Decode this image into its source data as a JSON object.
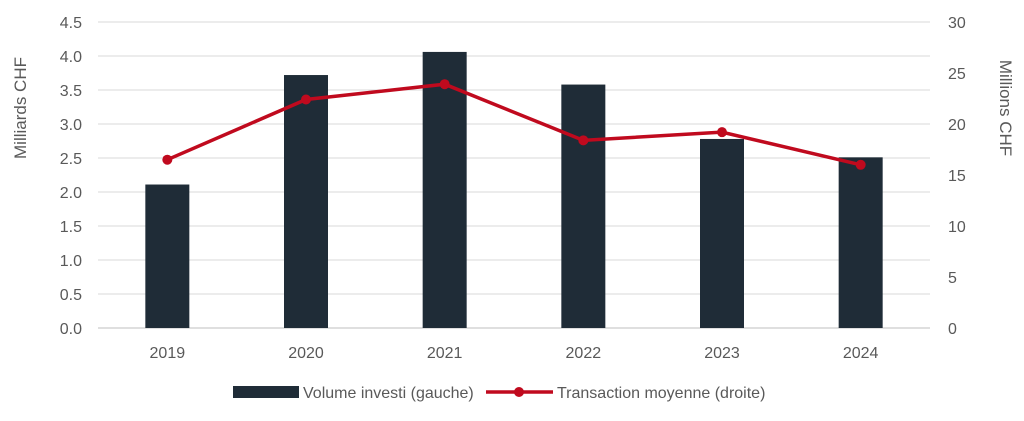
{
  "chart_data": {
    "type": "bar+line",
    "categories": [
      "2019",
      "2020",
      "2021",
      "2022",
      "2023",
      "2024"
    ],
    "series": [
      {
        "name": "Volume investi (gauche)",
        "type": "bar",
        "axis": "left",
        "color": "#1f2c37",
        "values": [
          2.11,
          3.72,
          4.06,
          3.58,
          2.78,
          2.51
        ]
      },
      {
        "name": "Transaction moyenne (droite)",
        "type": "line",
        "axis": "right",
        "color": "#c00a1e",
        "values": [
          16.5,
          22.4,
          23.9,
          18.4,
          19.2,
          16.0
        ]
      }
    ],
    "ylabel": "Milliards CHF",
    "y2label": "Millions CHF",
    "ylim": [
      0,
      4.5
    ],
    "y2lim": [
      0,
      30
    ],
    "yticks": [
      "0.0",
      "0.5",
      "1.0",
      "1.5",
      "2.0",
      "2.5",
      "3.0",
      "3.5",
      "4.0",
      "4.5"
    ],
    "y2ticks": [
      "0",
      "5",
      "10",
      "15",
      "20",
      "25",
      "30"
    ],
    "grid": true,
    "legend": "bottom"
  }
}
